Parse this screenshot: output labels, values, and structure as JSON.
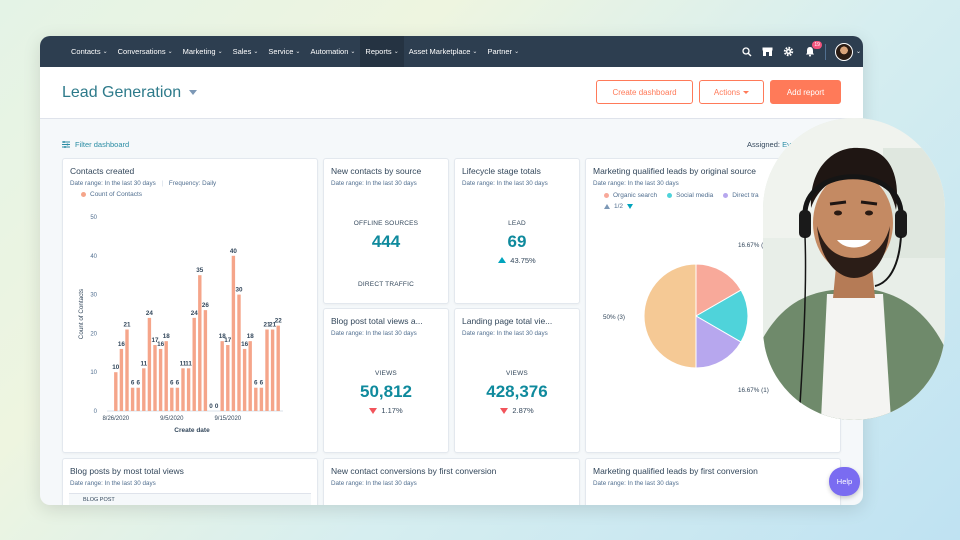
{
  "nav": {
    "items": [
      {
        "label": "Contacts"
      },
      {
        "label": "Conversations"
      },
      {
        "label": "Marketing"
      },
      {
        "label": "Sales"
      },
      {
        "label": "Service"
      },
      {
        "label": "Automation"
      },
      {
        "label": "Reports"
      },
      {
        "label": "Asset Marketplace"
      },
      {
        "label": "Partner"
      }
    ],
    "active": "Reports",
    "notification_count": "19",
    "icons": [
      "search-icon",
      "marketplace-icon",
      "settings-icon",
      "notifications-icon"
    ]
  },
  "header": {
    "title": "Lead Generation",
    "create_dashboard": "Create dashboard",
    "actions": "Actions",
    "add_report": "Add report"
  },
  "filter": {
    "filter_label": "Filter dashboard",
    "assigned_label": "Assigned:",
    "assigned_value": "Eve"
  },
  "cards": {
    "contacts_created": {
      "title": "Contacts created",
      "date_range": "Date range: In the last 30 days",
      "frequency": "Frequency: Daily",
      "legend": "Count of Contacts"
    },
    "new_contacts_source": {
      "title": "New contacts by source",
      "date_range": "Date range: In the last 30 days",
      "label1": "OFFLINE SOURCES",
      "value1": "444",
      "label2": "DIRECT TRAFFIC"
    },
    "lifecycle": {
      "title": "Lifecycle stage totals",
      "date_range": "Date range: In the last 30 days",
      "label": "LEAD",
      "value": "69",
      "change": "43.75%"
    },
    "blog_views": {
      "title": "Blog post total views a...",
      "date_range": "Date range: In the last 30 days",
      "label": "VIEWS",
      "value": "50,812",
      "change": "1.17%"
    },
    "landing_views": {
      "title": "Landing page total vie...",
      "date_range": "Date range: In the last 30 days",
      "label": "VIEWS",
      "value": "428,376",
      "change": "2.87%"
    },
    "mql_source": {
      "title": "Marketing qualified leads by original source",
      "date_range": "Date range: In the last 30 days",
      "legend": [
        "Organic search",
        "Social media",
        "Direct tra"
      ],
      "page": "1/2"
    },
    "blog_most_views": {
      "title": "Blog posts by most total views",
      "date_range": "Date range: In the last 30 days",
      "column": "BLOG POST"
    },
    "new_conversions": {
      "title": "New contact conversions by first conversion",
      "date_range": "Date range: In the last 30 days"
    },
    "mql_conversion": {
      "title": "Marketing qualified leads by first conversion",
      "date_range": "Date range: In the last 30 days"
    }
  },
  "help": "Help",
  "colors": {
    "nav_bg": "#2d3e50",
    "accent": "#ff7a59",
    "teal": "#0f8a9d",
    "bar": "#f5a58a",
    "up": "#00a4bd",
    "down": "#f2545b"
  },
  "chart_data": [
    {
      "type": "bar",
      "title": "",
      "xlabel": "Create date",
      "ylabel": "Count of Contacts",
      "ylim": [
        0,
        50
      ],
      "yticks": [
        0,
        10,
        20,
        30,
        40,
        50
      ],
      "xticks": [
        "8/26/2020",
        "9/5/2020",
        "9/15/2020"
      ],
      "series": [
        {
          "name": "Count of Contacts",
          "values": [
            10,
            16,
            21,
            6,
            6,
            11,
            24,
            17,
            16,
            18,
            6,
            6,
            11,
            11,
            24,
            35,
            26,
            0,
            0,
            18,
            17,
            40,
            30,
            16,
            18,
            6,
            6,
            21,
            21,
            22
          ]
        }
      ]
    },
    {
      "type": "pie",
      "title": "",
      "slices": [
        {
          "label": "Organic search",
          "value": 16.67,
          "display": "16.67% (1)",
          "color": "#f8a99a"
        },
        {
          "label": "Social media",
          "value": 16.67,
          "display": "",
          "color": "#4fd3da"
        },
        {
          "label": "Direct traffic",
          "value": 16.67,
          "display": "16.67% (1)",
          "color": "#b7a7ee"
        },
        {
          "label": "",
          "value": 50,
          "display": "50% (3)",
          "color": "#f5c995"
        }
      ]
    }
  ]
}
